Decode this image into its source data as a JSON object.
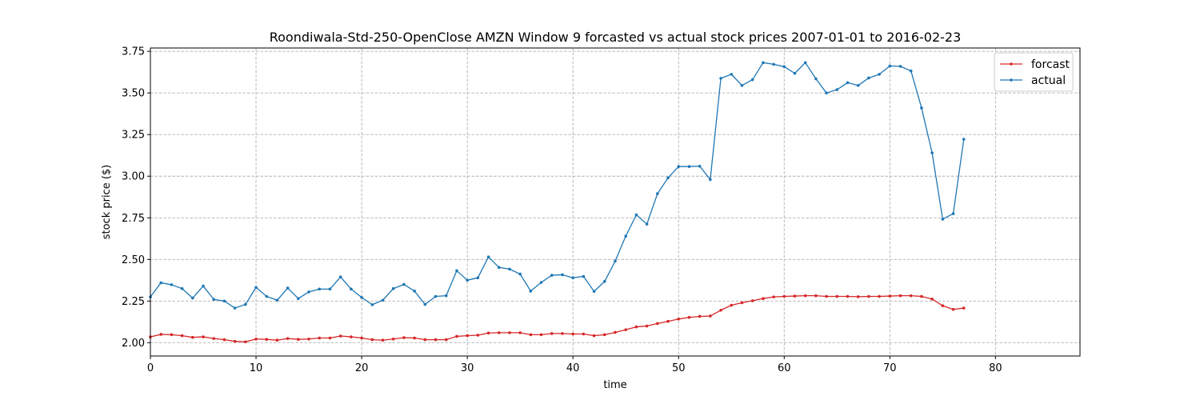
{
  "chart_data": {
    "type": "line",
    "title": "Roondiwala-Std-250-OpenClose AMZN Window 9 forcasted vs actual stock prices 2007-01-01 to 2016-02-23",
    "xlabel": "time",
    "ylabel": "stock price ($)",
    "xlim": [
      0,
      88
    ],
    "ylim": [
      1.92,
      3.77
    ],
    "xticks": [
      0,
      10,
      20,
      30,
      40,
      50,
      60,
      70,
      80
    ],
    "yticks": [
      2.0,
      2.25,
      2.5,
      2.75,
      3.0,
      3.25,
      3.5,
      3.75
    ],
    "ytick_labels": [
      "2.00",
      "2.25",
      "2.50",
      "2.75",
      "3.00",
      "3.25",
      "3.50",
      "3.75"
    ],
    "grid": true,
    "legend_position": "top-right",
    "series": [
      {
        "name": "forcast",
        "color": "#d62728",
        "values": [
          2.035,
          2.05,
          2.048,
          2.042,
          2.032,
          2.035,
          2.025,
          2.018,
          2.008,
          2.005,
          2.022,
          2.02,
          2.015,
          2.025,
          2.02,
          2.022,
          2.028,
          2.028,
          2.04,
          2.035,
          2.028,
          2.018,
          2.015,
          2.022,
          2.03,
          2.028,
          2.018,
          2.018,
          2.018,
          2.038,
          2.042,
          2.045,
          2.058,
          2.06,
          2.06,
          2.06,
          2.048,
          2.048,
          2.055,
          2.055,
          2.052,
          2.052,
          2.042,
          2.048,
          2.062,
          2.078,
          2.095,
          2.1,
          2.115,
          2.128,
          2.142,
          2.152,
          2.158,
          2.16,
          2.195,
          2.225,
          2.24,
          2.252,
          2.265,
          2.275,
          2.278,
          2.28,
          2.282,
          2.282,
          2.278,
          2.278,
          2.278,
          2.276,
          2.278,
          2.278,
          2.28,
          2.282,
          2.282,
          2.278,
          2.262,
          2.222,
          2.2,
          2.208
        ]
      },
      {
        "name": "actual",
        "color": "#1f77b4",
        "values": [
          2.275,
          2.36,
          2.348,
          2.325,
          2.268,
          2.34,
          2.26,
          2.25,
          2.208,
          2.23,
          2.332,
          2.278,
          2.255,
          2.328,
          2.265,
          2.305,
          2.322,
          2.322,
          2.395,
          2.322,
          2.272,
          2.228,
          2.255,
          2.325,
          2.35,
          2.31,
          2.23,
          2.278,
          2.282,
          2.432,
          2.375,
          2.39,
          2.515,
          2.452,
          2.442,
          2.412,
          2.31,
          2.362,
          2.405,
          2.408,
          2.39,
          2.398,
          2.308,
          2.368,
          2.49,
          2.64,
          2.768,
          2.712,
          2.895,
          2.99,
          3.058,
          3.058,
          3.06,
          2.98,
          3.588,
          3.612,
          3.545,
          3.58,
          3.682,
          3.672,
          3.658,
          3.618,
          3.682,
          3.585,
          3.5,
          3.52,
          3.562,
          3.545,
          3.59,
          3.612,
          3.662,
          3.66,
          3.632,
          3.41,
          3.14,
          2.742,
          2.775,
          3.222
        ]
      }
    ]
  }
}
